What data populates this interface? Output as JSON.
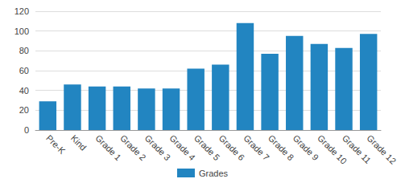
{
  "chart_data": {
    "type": "bar",
    "categories": [
      "Pre-K",
      "Kind",
      "Grade 1",
      "Grade 2",
      "Grade 3",
      "Grade 4",
      "Grade 5",
      "Grade 6",
      "Grade 7",
      "Grade 8",
      "Grade 9",
      "Grade 10",
      "Grade 11",
      "Grade 12"
    ],
    "series": [
      {
        "name": "Grades",
        "color": "#2285c1",
        "values": [
          29,
          46,
          44,
          44,
          42,
          42,
          62,
          66,
          108,
          77,
          95,
          87,
          83,
          97
        ]
      }
    ],
    "ylim": [
      0,
      120
    ],
    "yticks": [
      0,
      20,
      40,
      60,
      80,
      100,
      120
    ],
    "grid": true,
    "legend": "bottom"
  }
}
